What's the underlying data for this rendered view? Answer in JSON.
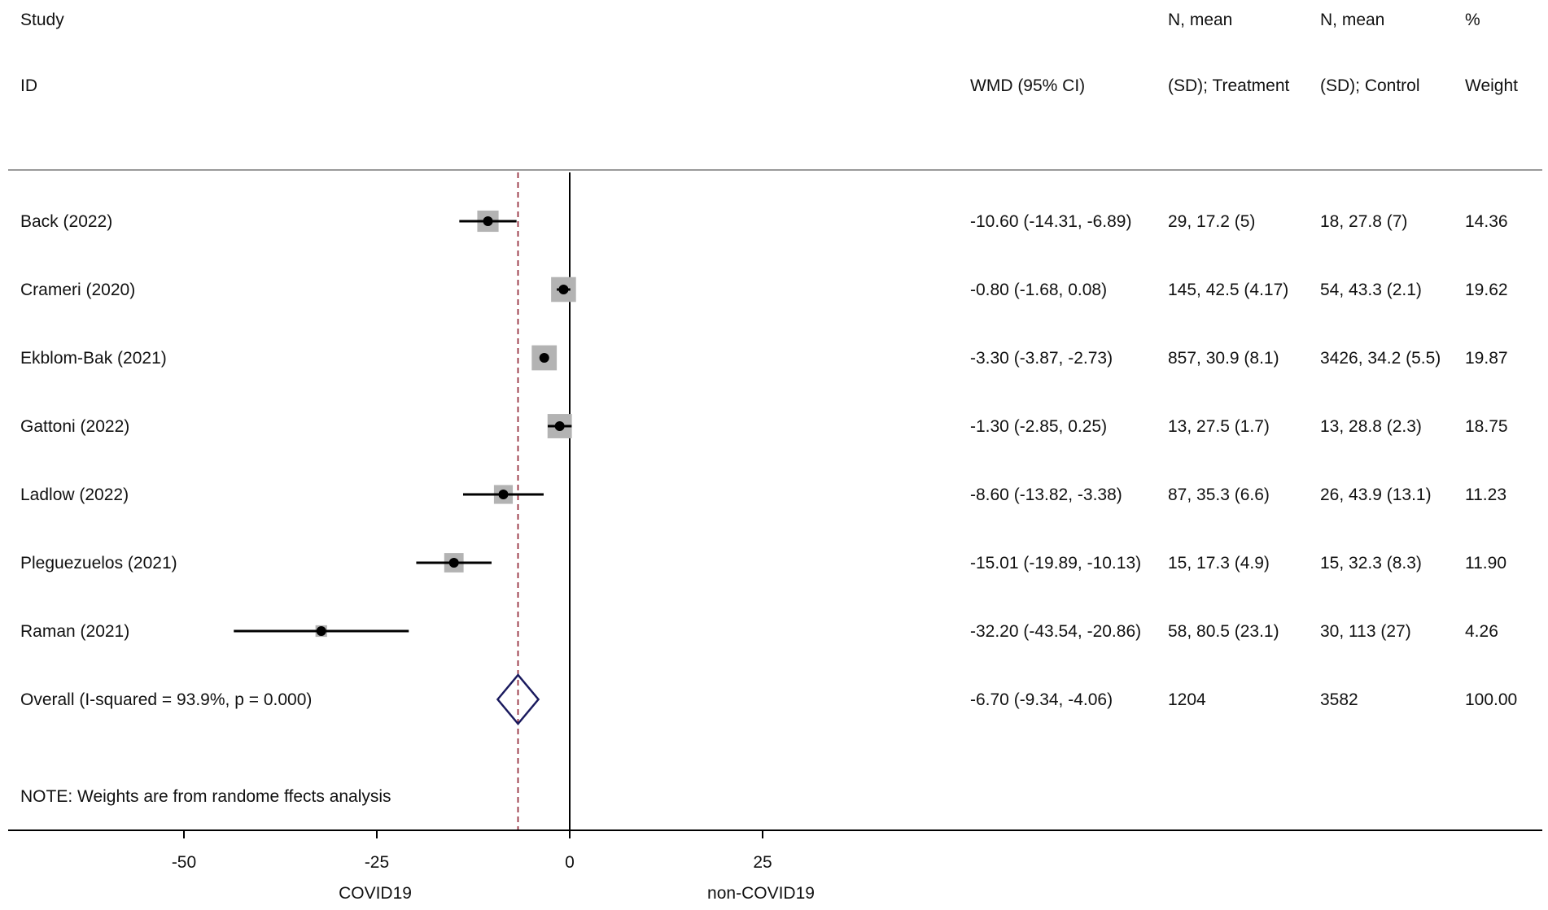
{
  "header": {
    "study_line1": "Study",
    "study_line2": "ID",
    "wmd": "WMD (95% CI)",
    "treat_line1": "N, mean",
    "treat_line2": "(SD); Treatment",
    "control_line1": "N, mean",
    "control_line2": "(SD); Control",
    "weight_line1": "%",
    "weight_line2": "Weight"
  },
  "note": "NOTE: Weights are from randome ffects analysis",
  "colors": {
    "line": "#000000",
    "box": "#b3b3b3",
    "diamond": "#1a1a5e",
    "reference": "#8b1a2b",
    "rule": "#9a9a9a"
  },
  "chart_data": {
    "type": "forest",
    "xlabel_left": "COVID19",
    "xlabel_right": "non-COVID19",
    "x_ticks": [
      -50,
      -25,
      0,
      25
    ],
    "xlim": [
      -70,
      25
    ],
    "null_line": 0,
    "overall_line": -6.7,
    "studies": [
      {
        "study": "Back (2022)",
        "est": -10.6,
        "lo": -14.31,
        "hi": -6.89,
        "wmd": "-10.60 (-14.31, -6.89)",
        "treatment": "29, 17.2 (5)",
        "control": "18, 27.8 (7)",
        "weight": 14.36,
        "weight_label": "14.36"
      },
      {
        "study": "Crameri (2020)",
        "est": -0.8,
        "lo": -1.68,
        "hi": 0.08,
        "wmd": "-0.80 (-1.68, 0.08)",
        "treatment": "145, 42.5 (4.17)",
        "control": "54, 43.3 (2.1)",
        "weight": 19.62,
        "weight_label": "19.62"
      },
      {
        "study": "Ekblom-Bak (2021)",
        "est": -3.3,
        "lo": -3.87,
        "hi": -2.73,
        "wmd": "-3.30 (-3.87, -2.73)",
        "treatment": "857, 30.9 (8.1)",
        "control": "3426, 34.2 (5.5)",
        "weight": 19.87,
        "weight_label": "19.87"
      },
      {
        "study": "Gattoni (2022)",
        "est": -1.3,
        "lo": -2.85,
        "hi": 0.25,
        "wmd": "-1.30 (-2.85, 0.25)",
        "treatment": "13, 27.5 (1.7)",
        "control": "13, 28.8 (2.3)",
        "weight": 18.75,
        "weight_label": "18.75"
      },
      {
        "study": "Ladlow (2022)",
        "est": -8.6,
        "lo": -13.82,
        "hi": -3.38,
        "wmd": "-8.60 (-13.82, -3.38)",
        "treatment": "87, 35.3 (6.6)",
        "control": "26, 43.9 (13.1)",
        "weight": 11.23,
        "weight_label": "11.23"
      },
      {
        "study": "Pleguezuelos (2021)",
        "est": -15.01,
        "lo": -19.89,
        "hi": -10.13,
        "wmd": "-15.01 (-19.89, -10.13)",
        "treatment": "15, 17.3 (4.9)",
        "control": "15, 32.3 (8.3)",
        "weight": 11.9,
        "weight_label": "11.90"
      },
      {
        "study": "Raman (2021)",
        "est": -32.2,
        "lo": -43.54,
        "hi": -20.86,
        "wmd": "-32.20 (-43.54, -20.86)",
        "treatment": "58, 80.5 (23.1)",
        "control": "30, 113 (27)",
        "weight": 4.26,
        "weight_label": "4.26"
      }
    ],
    "overall": {
      "label": "Overall (I-squared = 93.9%, p = 0.000)",
      "est": -6.7,
      "lo": -9.34,
      "hi": -4.06,
      "wmd": "-6.70 (-9.34, -4.06)",
      "treatment": "1204",
      "control": "3582",
      "weight": 100.0,
      "weight_label": "100.00"
    }
  }
}
